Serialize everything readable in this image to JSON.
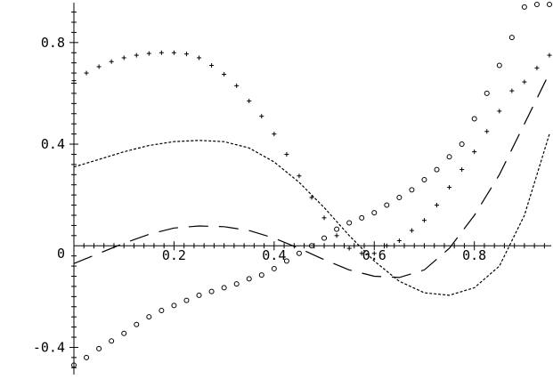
{
  "chart_data": {
    "type": "line",
    "title": "",
    "xlabel": "",
    "ylabel": "",
    "xlim": [
      0,
      0.95
    ],
    "ylim": [
      -0.5,
      0.95
    ],
    "grid": false,
    "legend": "none",
    "x_ticks": [
      {
        "value": 0.2,
        "label": "0.2"
      },
      {
        "value": 0.4,
        "label": "0.4"
      },
      {
        "value": 0.6,
        "label": "0.6"
      },
      {
        "value": 0.8,
        "label": "0.8"
      }
    ],
    "y_ticks": [
      {
        "value": -0.4,
        "label": "-0.4"
      },
      {
        "value": 0.4,
        "label": "0.4"
      },
      {
        "value": 0.8,
        "label": "0.8"
      }
    ],
    "origin_label": "0",
    "series": [
      {
        "style": "short-dash",
        "x": [
          0,
          0.05,
          0.1,
          0.15,
          0.2,
          0.25,
          0.3,
          0.35,
          0.4,
          0.45,
          0.5,
          0.55,
          0.6,
          0.65,
          0.7,
          0.75,
          0.8,
          0.85,
          0.9,
          0.95
        ],
        "y": [
          0.31,
          0.34,
          0.37,
          0.395,
          0.41,
          0.415,
          0.41,
          0.385,
          0.33,
          0.25,
          0.15,
          0.04,
          -0.06,
          -0.14,
          -0.185,
          -0.195,
          -0.165,
          -0.08,
          0.12,
          0.44
        ]
      },
      {
        "style": "long-dash",
        "x": [
          0,
          0.05,
          0.1,
          0.15,
          0.2,
          0.25,
          0.3,
          0.35,
          0.4,
          0.45,
          0.5,
          0.55,
          0.6,
          0.65,
          0.7,
          0.75,
          0.8,
          0.85,
          0.9,
          0.95
        ],
        "y": [
          -0.07,
          -0.03,
          0.01,
          0.045,
          0.07,
          0.078,
          0.075,
          0.06,
          0.03,
          -0.01,
          -0.055,
          -0.095,
          -0.12,
          -0.125,
          -0.095,
          -0.01,
          0.12,
          0.28,
          0.48,
          0.68
        ]
      },
      {
        "style": "plus-markers",
        "x": [
          0,
          0.025,
          0.05,
          0.075,
          0.1,
          0.125,
          0.15,
          0.175,
          0.2,
          0.225,
          0.25,
          0.275,
          0.3,
          0.325,
          0.35,
          0.375,
          0.4,
          0.425,
          0.45,
          0.475,
          0.5,
          0.525,
          0.55,
          0.575,
          0.6,
          0.625,
          0.65,
          0.675,
          0.7,
          0.725,
          0.75,
          0.775,
          0.8,
          0.825,
          0.85,
          0.875,
          0.9,
          0.925,
          0.95
        ],
        "y": [
          0.65,
          0.68,
          0.705,
          0.725,
          0.74,
          0.75,
          0.757,
          0.76,
          0.76,
          0.755,
          0.74,
          0.71,
          0.675,
          0.63,
          0.57,
          0.51,
          0.44,
          0.36,
          0.275,
          0.19,
          0.11,
          0.04,
          -0.01,
          -0.03,
          -0.03,
          0.0,
          0.02,
          0.06,
          0.1,
          0.16,
          0.23,
          0.3,
          0.37,
          0.45,
          0.53,
          0.61,
          0.645,
          0.7,
          0.75
        ]
      },
      {
        "style": "circle-markers",
        "x": [
          0,
          0.025,
          0.05,
          0.075,
          0.1,
          0.125,
          0.15,
          0.175,
          0.2,
          0.225,
          0.25,
          0.275,
          0.3,
          0.325,
          0.35,
          0.375,
          0.4,
          0.425,
          0.45,
          0.475,
          0.5,
          0.525,
          0.55,
          0.575,
          0.6,
          0.625,
          0.65,
          0.675,
          0.7,
          0.725,
          0.75,
          0.775,
          0.8,
          0.825,
          0.85,
          0.875,
          0.9,
          0.925,
          0.95
        ],
        "y": [
          -0.47,
          -0.44,
          -0.405,
          -0.375,
          -0.345,
          -0.31,
          -0.28,
          -0.255,
          -0.235,
          -0.215,
          -0.195,
          -0.18,
          -0.165,
          -0.15,
          -0.13,
          -0.115,
          -0.09,
          -0.06,
          -0.03,
          0.0,
          0.03,
          0.065,
          0.09,
          0.11,
          0.13,
          0.16,
          0.19,
          0.22,
          0.26,
          0.3,
          0.35,
          0.4,
          0.5,
          0.6,
          0.71,
          0.82,
          0.94,
          0.95,
          0.95
        ]
      }
    ]
  }
}
